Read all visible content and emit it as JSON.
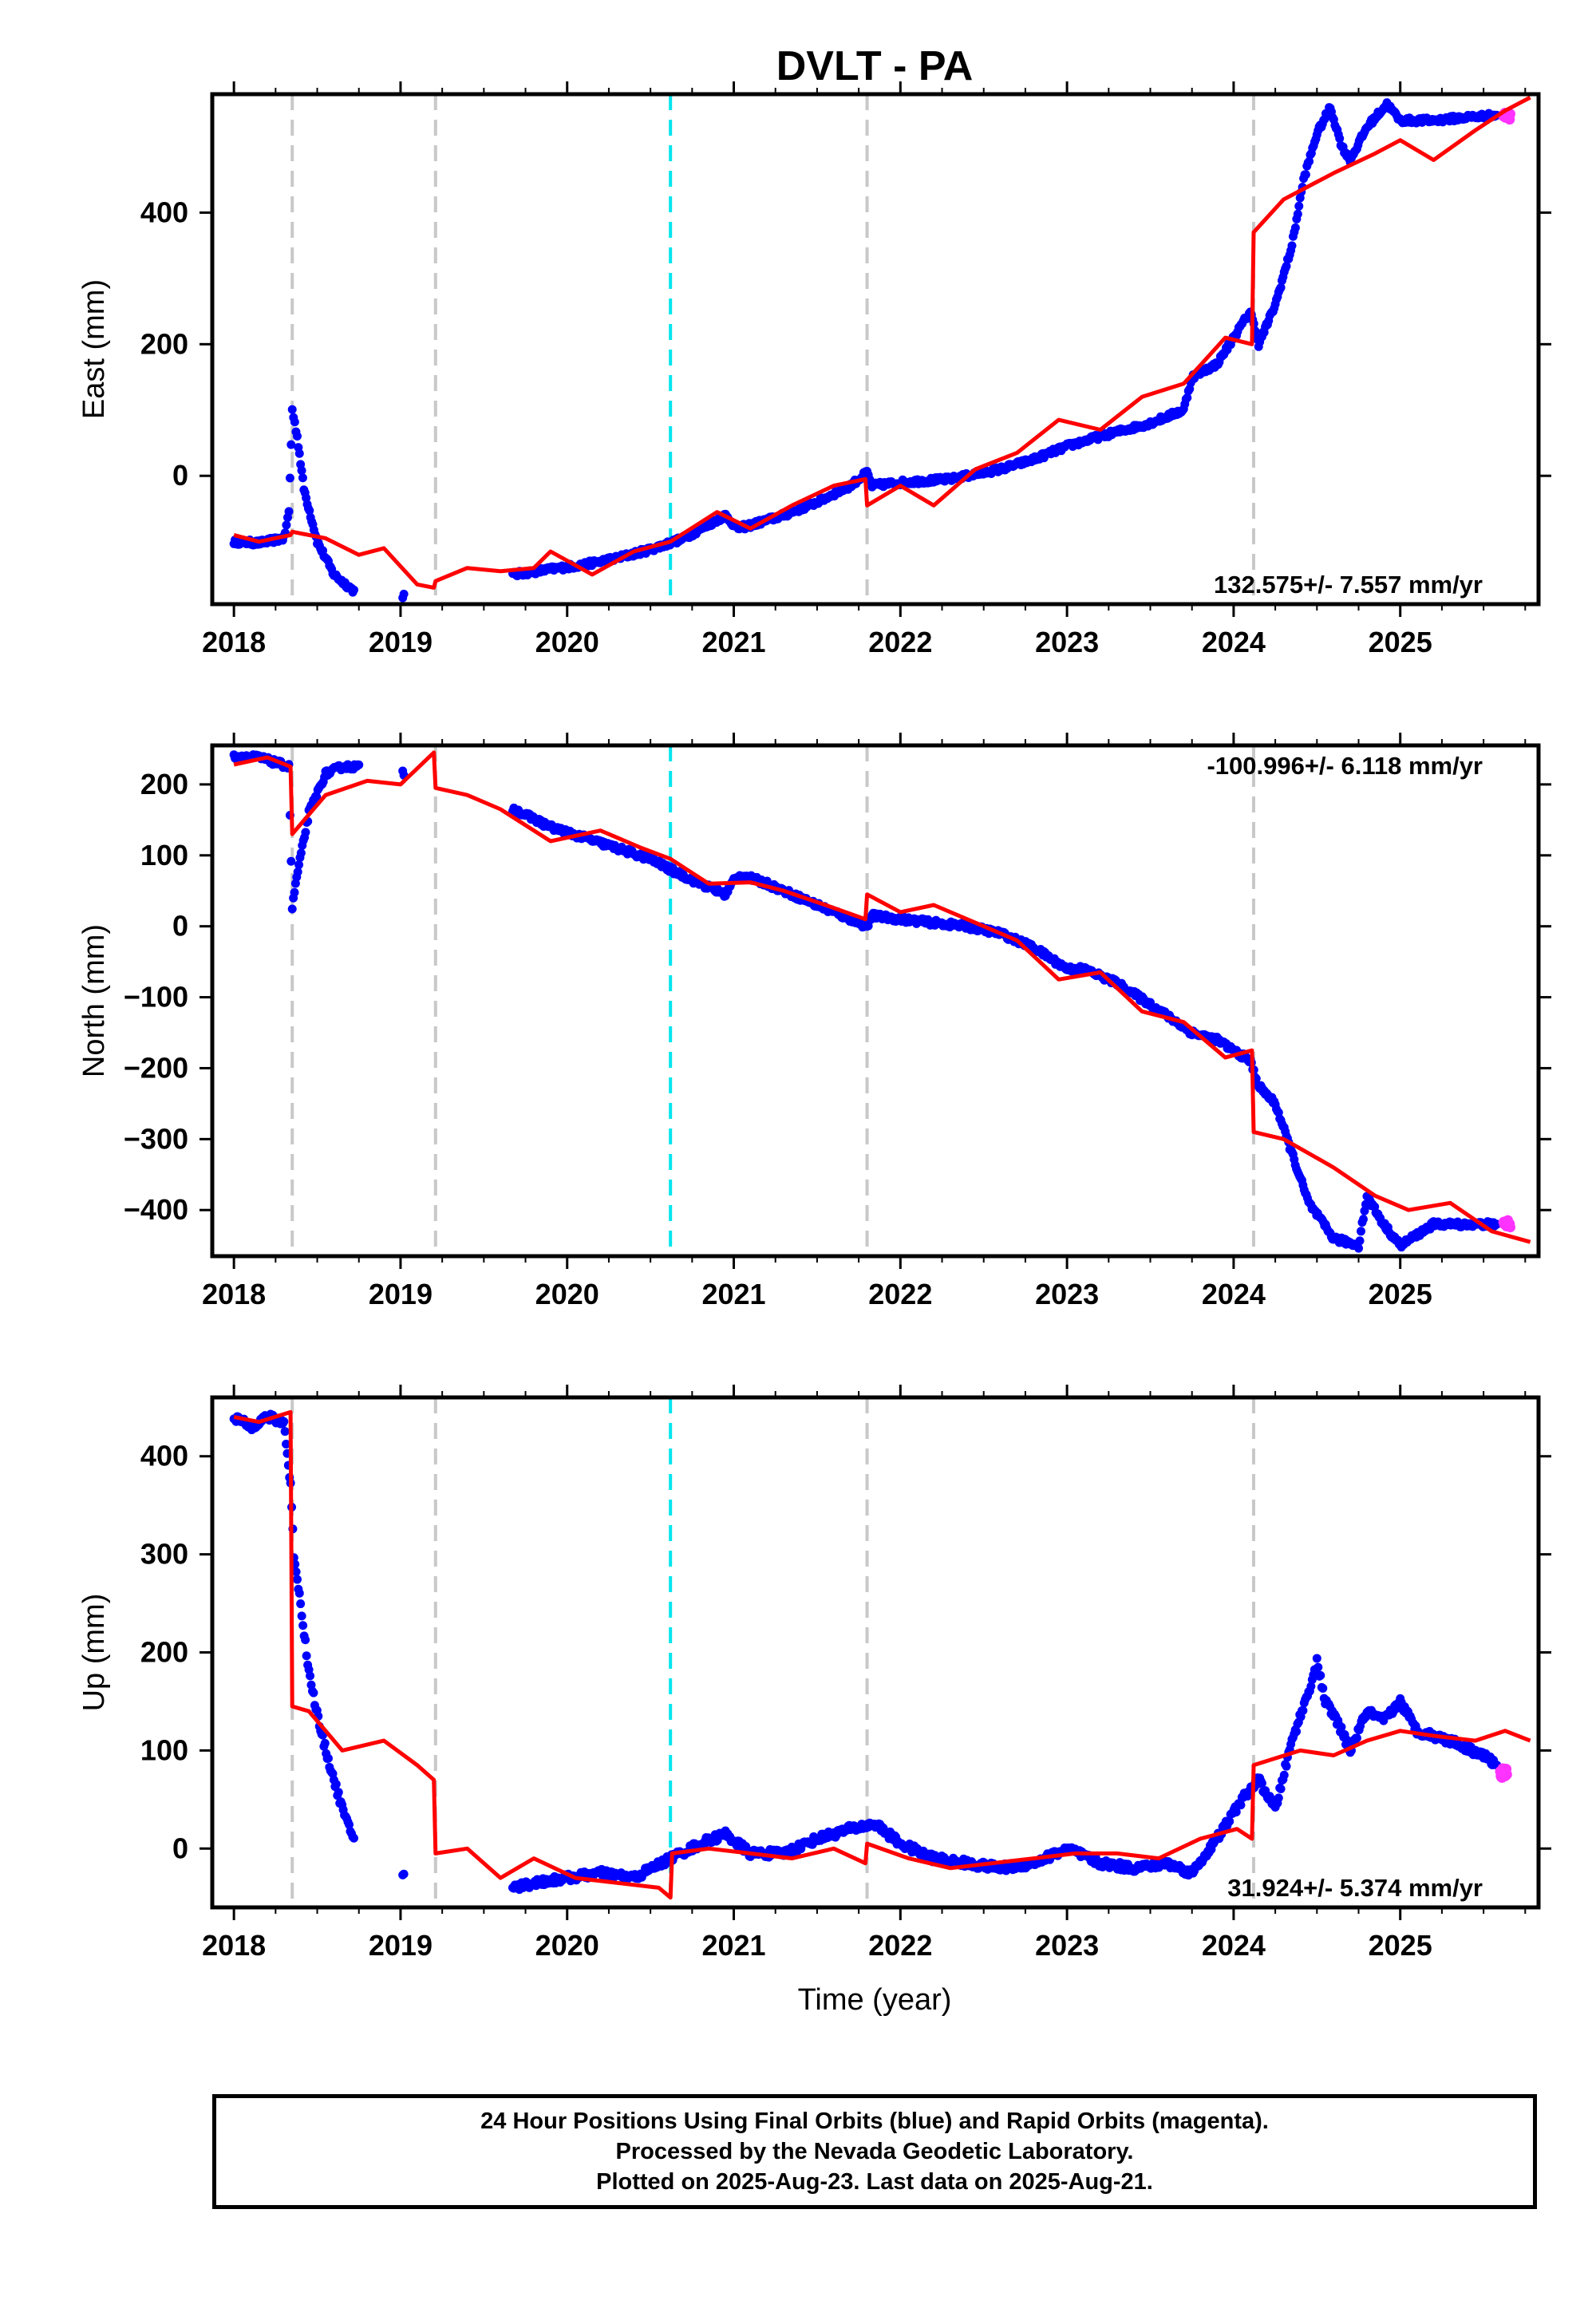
{
  "title": "DVLT - PA",
  "xlabel": "Time (year)",
  "caption": {
    "line1": "24 Hour Positions Using Final Orbits (blue) and Rapid Orbits (magenta).",
    "line2": "Processed by the Nevada Geodetic Laboratory.",
    "line3": "Plotted on 2025-Aug-23. Last data on 2025-Aug-21."
  },
  "colors": {
    "final_orbits": "#0000ff",
    "rapid_orbits": "#ff33ff",
    "model": "#ff0000",
    "equipment_change": "#c8c8c8",
    "earthquake": "#00e5ee"
  },
  "chart_data": [
    {
      "type": "scatter",
      "ylabel": "East (mm)",
      "xlim": [
        2017.87,
        2025.83
      ],
      "ylim": [
        -195,
        580
      ],
      "xticks": [
        2018,
        2019,
        2020,
        2021,
        2022,
        2023,
        2024,
        2025
      ],
      "yticks": [
        0,
        200,
        400
      ],
      "rate_label": "132.575+/- 7.557 mm/yr",
      "rate_position": "bottom-right",
      "vlines_gray": [
        2018.35,
        2019.21,
        2021.8,
        2024.12
      ],
      "vlines_cyan": [
        2020.62
      ],
      "observations": {
        "x": [
          2018.0,
          2018.15,
          2018.3,
          2018.33,
          2018.35,
          2018.38,
          2018.42,
          2018.5,
          2018.6,
          2018.72,
          2019.02,
          2019.68,
          2019.9,
          2020.1,
          2020.3,
          2020.5,
          2020.7,
          2020.95,
          2021.02,
          2021.1,
          2021.3,
          2021.5,
          2021.7,
          2021.8,
          2021.83,
          2022.0,
          2022.3,
          2022.6,
          2022.8,
          2023.0,
          2023.2,
          2023.5,
          2023.7,
          2023.75,
          2023.9,
          2024.1,
          2024.15,
          2024.25,
          2024.35,
          2024.42,
          2024.5,
          2024.58,
          2024.65,
          2024.7,
          2024.8,
          2024.92,
          2025.0,
          2025.2,
          2025.4,
          2025.58
        ],
        "y": [
          -100,
          -102,
          -95,
          -55,
          100,
          60,
          -20,
          -100,
          -150,
          -175,
          -182,
          -150,
          -142,
          -135,
          -125,
          -112,
          -95,
          -60,
          -80,
          -75,
          -60,
          -40,
          -15,
          5,
          -15,
          -10,
          -5,
          10,
          25,
          45,
          60,
          80,
          100,
          150,
          170,
          250,
          200,
          260,
          350,
          450,
          520,
          560,
          500,
          480,
          530,
          565,
          540,
          540,
          545,
          548
        ]
      },
      "rapid": {
        "x": [
          2025.62,
          2025.66
        ],
        "y": [
          548,
          546
        ]
      },
      "model": {
        "x": [
          2018.0,
          2018.15,
          2018.34,
          2018.35,
          2018.55,
          2018.75,
          2018.9,
          2019.1,
          2019.2,
          2019.21,
          2019.4,
          2019.6,
          2019.8,
          2019.9,
          2020.15,
          2020.4,
          2020.62,
          2020.9,
          2021.1,
          2021.35,
          2021.6,
          2021.79,
          2021.8,
          2022.0,
          2022.2,
          2022.45,
          2022.7,
          2022.95,
          2023.2,
          2023.45,
          2023.7,
          2023.95,
          2024.11,
          2024.12,
          2024.3,
          2024.6,
          2024.85,
          2025.0,
          2025.2,
          2025.45,
          2025.63,
          2025.78
        ],
        "y": [
          -90,
          -100,
          -90,
          -85,
          -95,
          -120,
          -110,
          -165,
          -170,
          -160,
          -140,
          -145,
          -140,
          -115,
          -150,
          -115,
          -100,
          -55,
          -80,
          -45,
          -15,
          -5,
          -45,
          -15,
          -45,
          10,
          35,
          85,
          70,
          120,
          140,
          210,
          200,
          370,
          420,
          460,
          490,
          510,
          480,
          525,
          555,
          575
        ]
      }
    },
    {
      "type": "scatter",
      "ylabel": "North (mm)",
      "xlim": [
        2017.87,
        2025.83
      ],
      "ylim": [
        -465,
        255
      ],
      "xticks": [
        2018,
        2019,
        2020,
        2021,
        2022,
        2023,
        2024,
        2025
      ],
      "yticks": [
        -400,
        -300,
        -200,
        -100,
        0,
        100,
        200
      ],
      "rate_label": "-100.996+/- 6.118 mm/yr",
      "rate_position": "top-right",
      "vlines_gray": [
        2018.35,
        2019.21,
        2021.8,
        2024.12
      ],
      "vlines_cyan": [
        2020.62
      ],
      "observations": {
        "x": [
          2018.0,
          2018.15,
          2018.33,
          2018.35,
          2018.37,
          2018.45,
          2018.55,
          2018.65,
          2018.75,
          2019.02,
          2019.68,
          2019.9,
          2020.1,
          2020.3,
          2020.5,
          2020.62,
          2020.8,
          2020.95,
          2021.0,
          2021.05,
          2021.2,
          2021.4,
          2021.6,
          2021.8,
          2021.83,
          2022.0,
          2022.2,
          2022.4,
          2022.6,
          2022.8,
          2023.0,
          2023.1,
          2023.3,
          2023.5,
          2023.75,
          2023.9,
          2024.1,
          2024.15,
          2024.25,
          2024.35,
          2024.45,
          2024.6,
          2024.75,
          2024.8,
          2024.9,
          2025.0,
          2025.2,
          2025.4,
          2025.58
        ],
        "y": [
          240,
          238,
          225,
          25,
          60,
          160,
          215,
          225,
          225,
          215,
          165,
          140,
          125,
          110,
          95,
          80,
          60,
          45,
          65,
          72,
          60,
          40,
          20,
          0,
          15,
          10,
          5,
          0,
          -10,
          -30,
          -60,
          -60,
          -80,
          -110,
          -150,
          -160,
          -190,
          -225,
          -250,
          -320,
          -390,
          -440,
          -450,
          -380,
          -420,
          -450,
          -420,
          -420,
          -420
        ]
      },
      "rapid": {
        "x": [
          2025.62,
          2025.66
        ],
        "y": [
          -418,
          -420
        ]
      },
      "model": {
        "x": [
          2018.0,
          2018.2,
          2018.34,
          2018.35,
          2018.55,
          2018.8,
          2019.0,
          2019.2,
          2019.21,
          2019.4,
          2019.6,
          2019.9,
          2020.2,
          2020.45,
          2020.62,
          2020.85,
          2021.1,
          2021.3,
          2021.55,
          2021.79,
          2021.8,
          2022.0,
          2022.2,
          2022.45,
          2022.7,
          2022.95,
          2023.2,
          2023.45,
          2023.7,
          2023.95,
          2024.11,
          2024.12,
          2024.3,
          2024.6,
          2024.85,
          2025.05,
          2025.3,
          2025.55,
          2025.78
        ],
        "y": [
          228,
          238,
          225,
          130,
          185,
          205,
          200,
          245,
          195,
          185,
          165,
          120,
          135,
          110,
          95,
          60,
          62,
          50,
          30,
          10,
          45,
          20,
          30,
          5,
          -20,
          -75,
          -65,
          -120,
          -135,
          -185,
          -175,
          -290,
          -300,
          -340,
          -380,
          -400,
          -390,
          -430,
          -445
        ]
      }
    },
    {
      "type": "scatter",
      "ylabel": "Up (mm)",
      "xlim": [
        2017.87,
        2025.83
      ],
      "ylim": [
        -60,
        460
      ],
      "xticks": [
        2018,
        2019,
        2020,
        2021,
        2022,
        2023,
        2024,
        2025
      ],
      "yticks": [
        0,
        100,
        200,
        300,
        400
      ],
      "rate_label": "31.924+/- 5.374 mm/yr",
      "rate_position": "bottom-right",
      "vlines_gray": [
        2018.35,
        2019.21,
        2021.8,
        2024.12
      ],
      "vlines_cyan": [
        2020.62
      ],
      "observations": {
        "x": [
          2018.0,
          2018.1,
          2018.2,
          2018.3,
          2018.34,
          2018.36,
          2018.4,
          2018.45,
          2018.52,
          2018.6,
          2018.67,
          2018.72,
          2019.02,
          2019.68,
          2019.8,
          2020.0,
          2020.2,
          2020.4,
          2020.62,
          2020.8,
          2020.95,
          2021.1,
          2021.3,
          2021.5,
          2021.7,
          2021.85,
          2022.0,
          2022.2,
          2022.4,
          2022.6,
          2022.8,
          2023.0,
          2023.2,
          2023.4,
          2023.6,
          2023.75,
          2023.9,
          2024.05,
          2024.15,
          2024.25,
          2024.35,
          2024.45,
          2024.5,
          2024.55,
          2024.62,
          2024.7,
          2024.8,
          2024.9,
          2025.0,
          2025.1,
          2025.3,
          2025.5,
          2025.58
        ],
        "y": [
          440,
          430,
          440,
          435,
          370,
          300,
          250,
          180,
          120,
          70,
          30,
          10,
          -25,
          -40,
          -35,
          -30,
          -25,
          -30,
          -10,
          5,
          15,
          -5,
          -5,
          10,
          20,
          25,
          5,
          -10,
          -15,
          -20,
          -15,
          0,
          -15,
          -20,
          -15,
          -25,
          10,
          50,
          70,
          40,
          110,
          160,
          190,
          150,
          130,
          100,
          140,
          130,
          150,
          120,
          110,
          95,
          85
        ]
      },
      "rapid": {
        "x": [
          2025.6,
          2025.64
        ],
        "y": [
          75,
          80
        ]
      },
      "model": {
        "x": [
          2018.0,
          2018.15,
          2018.34,
          2018.35,
          2018.45,
          2018.65,
          2018.9,
          2019.1,
          2019.2,
          2019.21,
          2019.4,
          2019.6,
          2019.8,
          2020.05,
          2020.3,
          2020.55,
          2020.62,
          2020.63,
          2020.85,
          2021.1,
          2021.35,
          2021.6,
          2021.79,
          2021.8,
          2022.05,
          2022.3,
          2022.55,
          2022.8,
          2023.05,
          2023.3,
          2023.55,
          2023.8,
          2024.02,
          2024.11,
          2024.12,
          2024.4,
          2024.6,
          2024.8,
          2025.0,
          2025.2,
          2025.45,
          2025.63,
          2025.78
        ],
        "y": [
          440,
          435,
          445,
          145,
          140,
          100,
          110,
          85,
          70,
          -5,
          0,
          -30,
          -10,
          -30,
          -35,
          -40,
          -50,
          -5,
          0,
          -5,
          -10,
          0,
          -15,
          5,
          -10,
          -20,
          -15,
          -10,
          -5,
          -5,
          -10,
          10,
          20,
          10,
          85,
          100,
          95,
          110,
          120,
          115,
          110,
          120,
          110
        ]
      }
    }
  ]
}
